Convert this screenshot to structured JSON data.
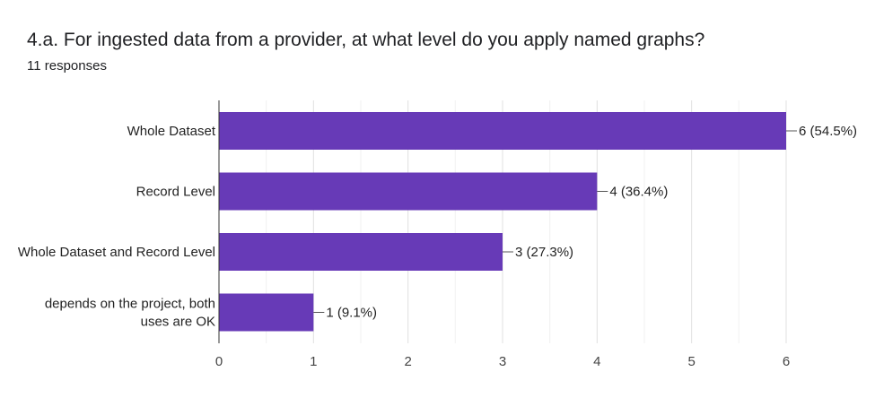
{
  "title": "4.a. For ingested data from a provider, at what level do you apply named graphs?",
  "subtitle": "11 responses",
  "chart_data": {
    "type": "bar",
    "orientation": "horizontal",
    "categories": [
      "Whole Dataset",
      "Record Level",
      "Whole Dataset and Record Level",
      "depends on the project, both uses are OK"
    ],
    "category_lines": [
      [
        "Whole Dataset"
      ],
      [
        "Record Level"
      ],
      [
        "Whole Dataset and Record Level"
      ],
      [
        "depends on the project, both",
        "uses are OK"
      ]
    ],
    "values": [
      6,
      4,
      3,
      1
    ],
    "data_labels": [
      "6 (54.5%)",
      "4 (36.4%)",
      "3 (27.3%)",
      "1 (9.1%)"
    ],
    "xlim": [
      0,
      6
    ],
    "xticks": [
      "0",
      "1",
      "2",
      "3",
      "4",
      "5",
      "6"
    ],
    "grid": true,
    "bar_color": "#673ab7"
  }
}
